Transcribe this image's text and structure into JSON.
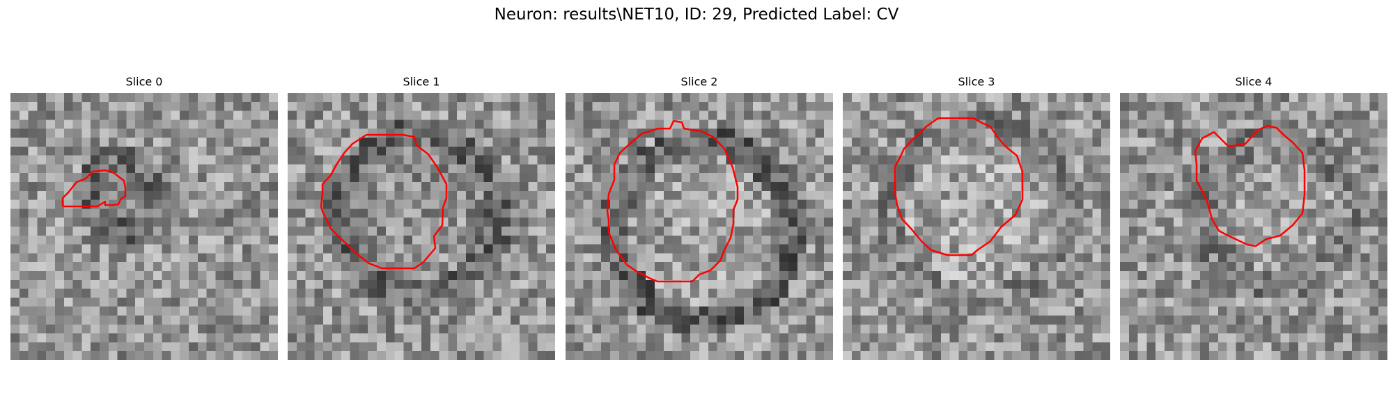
{
  "figure": {
    "title": "Neuron: results\\NET10, ID: 29, Predicted Label: CV",
    "contour_color": "#ff0000",
    "colormap": "gray"
  },
  "slices": [
    {
      "label": "Slice 0"
    },
    {
      "label": "Slice 1"
    },
    {
      "label": "Slice 2"
    },
    {
      "label": "Slice 3"
    },
    {
      "label": "Slice 4"
    }
  ]
}
